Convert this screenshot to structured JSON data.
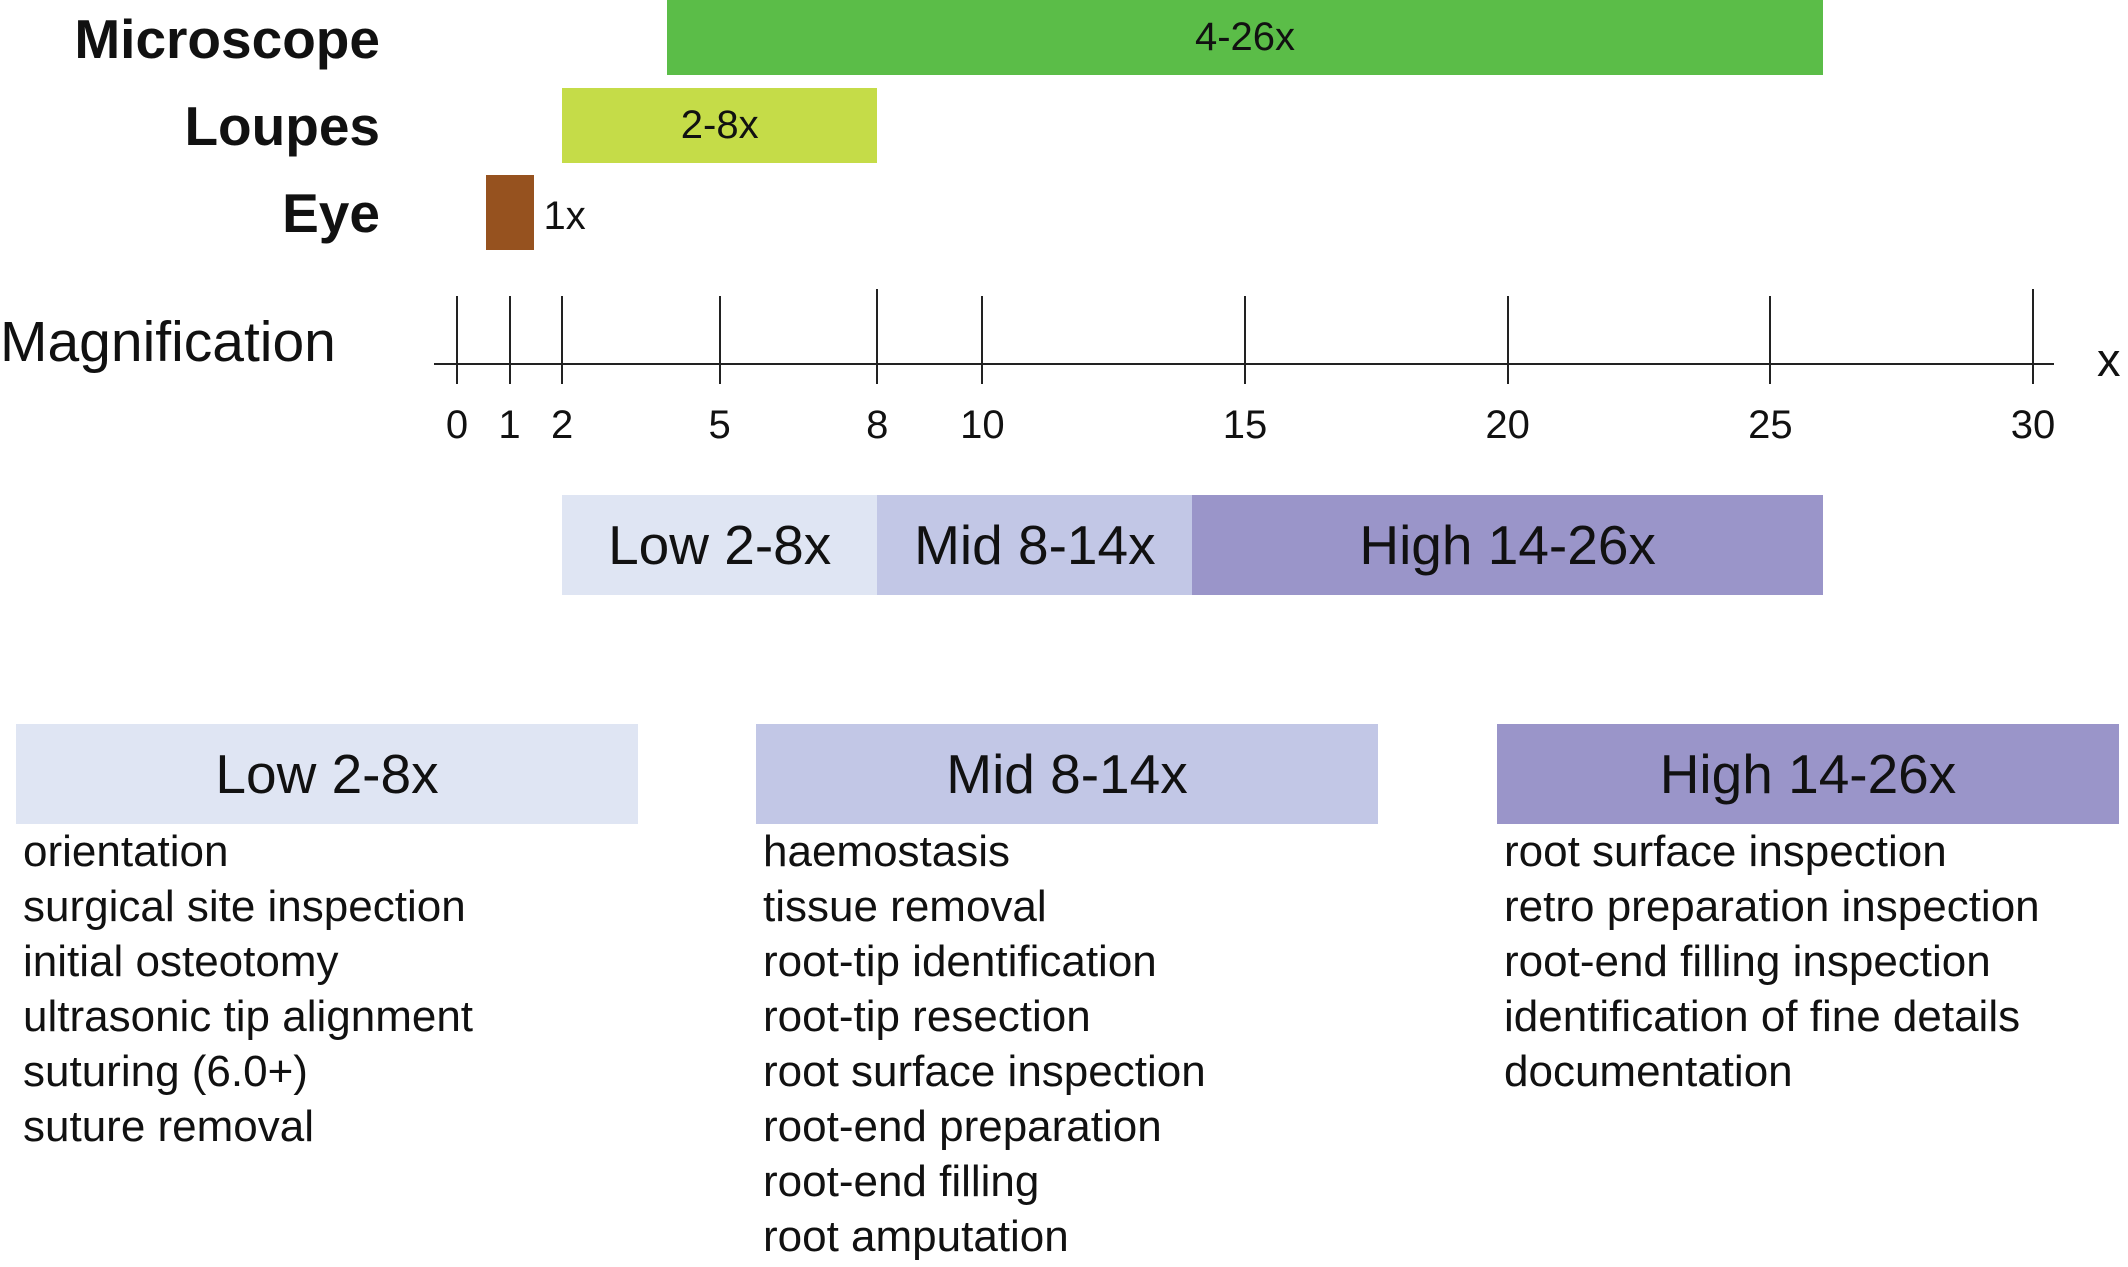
{
  "devices": [
    {
      "label": "Microscope",
      "range_label": "4-26x",
      "min": 4,
      "max": 26,
      "color": "#5bbd48"
    },
    {
      "label": "Loupes",
      "range_label": "2-8x",
      "min": 2,
      "max": 8,
      "color": "#c5dc48"
    },
    {
      "label": "Eye",
      "range_label": "1x",
      "min": 1,
      "max": 1,
      "color": "#96521f"
    }
  ],
  "axis": {
    "title": "Magnification",
    "unit": "x",
    "ticks": [
      "0",
      "1",
      "2",
      "5",
      "8",
      "10",
      "15",
      "20",
      "25",
      "30"
    ]
  },
  "ranges": [
    {
      "label": "Low 2-8x",
      "min": 2,
      "max": 8,
      "color": "#dfe5f3"
    },
    {
      "label": "Mid 8-14x",
      "min": 8,
      "max": 14,
      "color": "#c2c7e6"
    },
    {
      "label": "High 14-26x",
      "min": 14,
      "max": 26,
      "color": "#9a95c9"
    }
  ],
  "panels": [
    {
      "title": "Low 2-8x",
      "items": [
        "orientation",
        "surgical site inspection",
        "initial osteotomy",
        "ultrasonic tip alignment",
        "suturing (6.0+)",
        "suture removal"
      ]
    },
    {
      "title": "Mid 8-14x",
      "items": [
        "haemostasis",
        "tissue removal",
        "root-tip identification",
        "root-tip resection",
        "root surface inspection",
        "root-end preparation",
        "root-end filling",
        "root amputation"
      ]
    },
    {
      "title": "High 14-26x",
      "items": [
        "root surface inspection",
        "retro preparation inspection",
        "root-end filling inspection",
        "identification of fine details",
        "documentation"
      ]
    }
  ]
}
